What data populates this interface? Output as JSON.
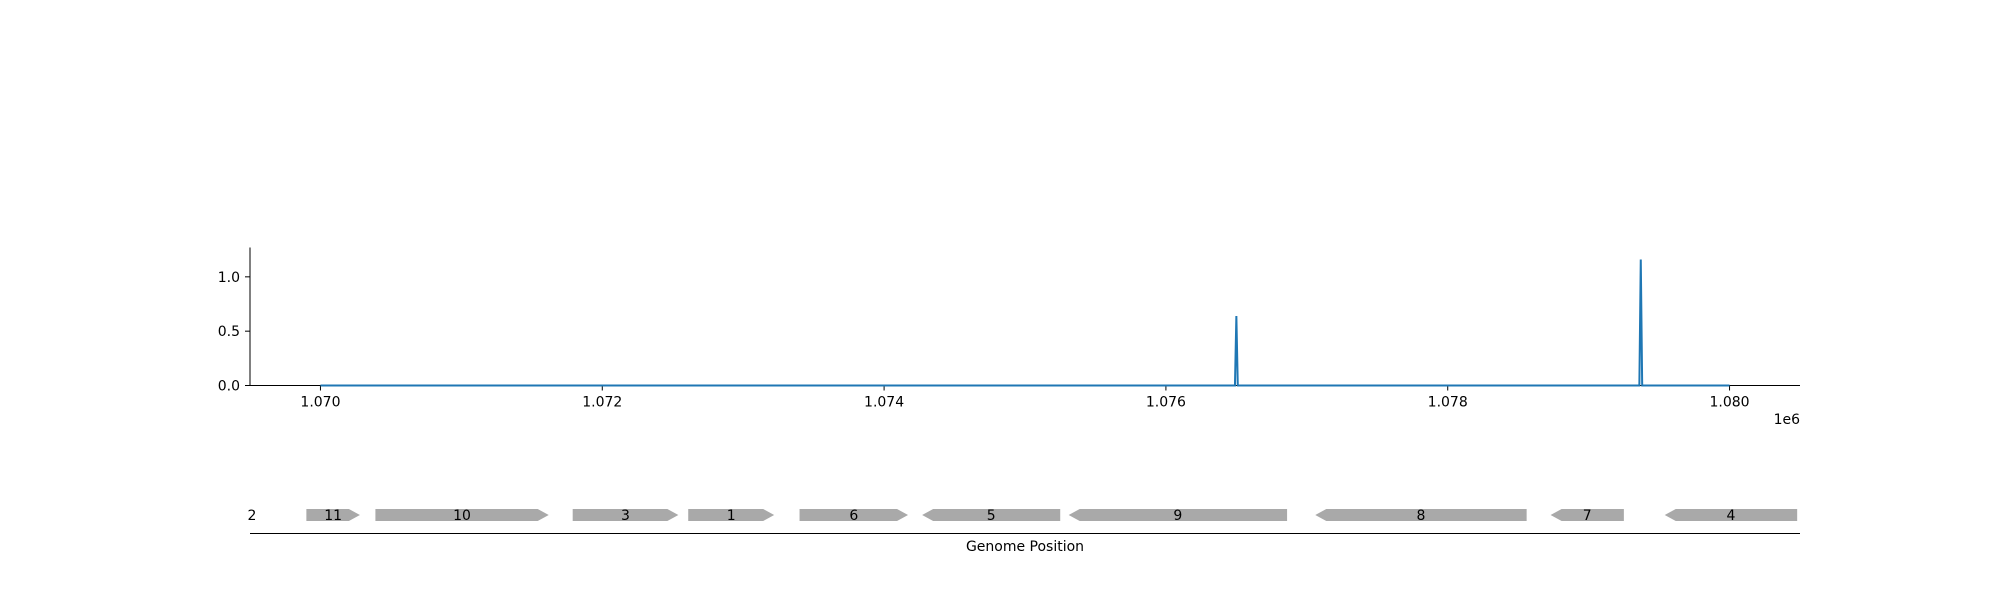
{
  "chart_data": [
    {
      "type": "line",
      "x_offset_label": "1e6",
      "xlim": [
        1069500,
        1080500
      ],
      "ylim": [
        0,
        1.27
      ],
      "x_ticks": [
        {
          "value": 1070000,
          "label": "1.070"
        },
        {
          "value": 1072000,
          "label": "1.072"
        },
        {
          "value": 1074000,
          "label": "1.074"
        },
        {
          "value": 1076000,
          "label": "1.076"
        },
        {
          "value": 1078000,
          "label": "1.078"
        },
        {
          "value": 1080000,
          "label": "1.080"
        }
      ],
      "y_ticks": [
        {
          "value": 0.0,
          "label": "0.0"
        },
        {
          "value": 0.5,
          "label": "0.5"
        },
        {
          "value": 1.0,
          "label": "1.0"
        }
      ],
      "series": [
        {
          "color": "#1f77b4",
          "x": [
            1070000,
            1076490,
            1076500,
            1076510,
            1079360,
            1079370,
            1079380,
            1080000
          ],
          "y": [
            0,
            0,
            0.64,
            0,
            0,
            1.16,
            0,
            0
          ]
        }
      ]
    },
    {
      "type": "gene-track",
      "xlabel": "Genome Position",
      "track_label": "2",
      "xlim": [
        1069500,
        1080500
      ],
      "feature_color": "#a9a9a9",
      "features": [
        {
          "label": "11",
          "start": 1069900,
          "end": 1070280,
          "strand": "+"
        },
        {
          "label": "10",
          "start": 1070390,
          "end": 1071620,
          "strand": "+"
        },
        {
          "label": "3",
          "start": 1071790,
          "end": 1072540,
          "strand": "+"
        },
        {
          "label": "1",
          "start": 1072610,
          "end": 1073220,
          "strand": "+"
        },
        {
          "label": "6",
          "start": 1073400,
          "end": 1074170,
          "strand": "+"
        },
        {
          "label": "5",
          "start": 1074270,
          "end": 1075250,
          "strand": "-"
        },
        {
          "label": "9",
          "start": 1075310,
          "end": 1076860,
          "strand": "-"
        },
        {
          "label": "8",
          "start": 1077060,
          "end": 1078560,
          "strand": "-"
        },
        {
          "label": "7",
          "start": 1078730,
          "end": 1079250,
          "strand": "-"
        },
        {
          "label": "4",
          "start": 1079540,
          "end": 1080480,
          "strand": "-"
        }
      ]
    }
  ]
}
